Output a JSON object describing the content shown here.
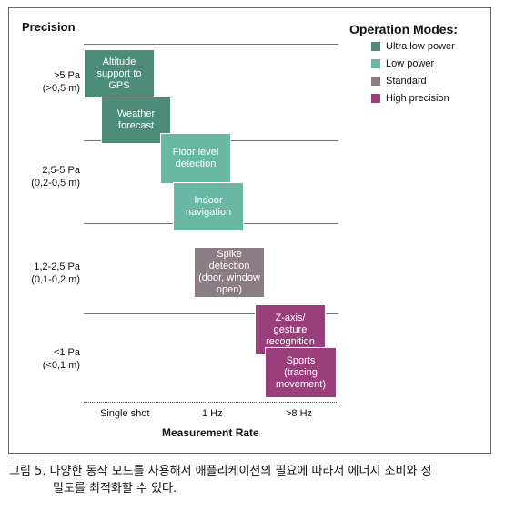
{
  "y_axis_title": "Precision",
  "x_axis_title": "Measurement Rate",
  "y_categories": [
    {
      "line1": ">5 Pa",
      "line2": "(>0,5 m)"
    },
    {
      "line1": "2,5-5 Pa",
      "line2": "(0,2-0,5 m)"
    },
    {
      "line1": "1,2-2,5 Pa",
      "line2": "(0,1-0,2 m)"
    },
    {
      "line1": "<1 Pa",
      "line2": "(<0,1 m)"
    }
  ],
  "x_categories": [
    "Single shot",
    "1 Hz",
    ">8 Hz"
  ],
  "legend": {
    "title": "Operation Modes:",
    "items": [
      {
        "label": "Ultra low power",
        "color": "#4e8c7a"
      },
      {
        "label": "Low power",
        "color": "#69b8a4"
      },
      {
        "label": "Standard",
        "color": "#8c7d85"
      },
      {
        "label": "High precision",
        "color": "#9b3f7c"
      }
    ]
  },
  "use_cases": [
    {
      "line1": "Altitude",
      "line2": "support to",
      "line3": "GPS",
      "mode": "Ultra low power"
    },
    {
      "line1": "Weather",
      "line2": "forecast",
      "line3": "",
      "mode": "Ultra low power"
    },
    {
      "line1": "Floor level",
      "line2": "detection",
      "line3": "",
      "mode": "Low power"
    },
    {
      "line1": "Indoor",
      "line2": "navigation",
      "line3": "",
      "mode": "Low power"
    },
    {
      "line1": "Spike",
      "line2": "detection",
      "line3": "(door, window",
      "line4": "open)",
      "mode": "Standard"
    },
    {
      "line1": "Z-axis/",
      "line2": "gesture",
      "line3": "recognition",
      "mode": "High precision"
    },
    {
      "line1": "Sports",
      "line2": "(tracing",
      "line3": "movement)",
      "mode": "High precision"
    }
  ],
  "caption": {
    "line1": "그림 5. 다양한 동작 모드를 사용해서 애플리케이션의 필요에 따라서 에너지 소비와 정",
    "line2": "밀도를 최적화할 수 있다."
  }
}
